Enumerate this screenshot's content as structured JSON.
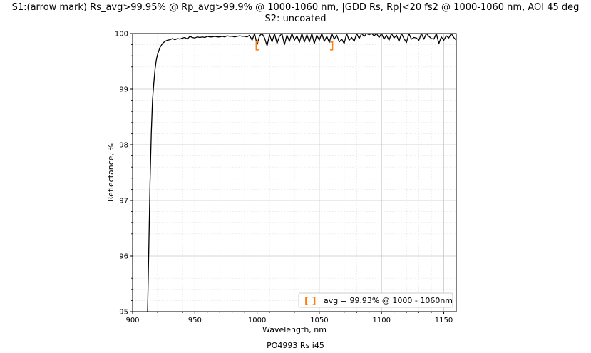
{
  "page": {
    "title_line1": "S1:(arrow mark) Rs_avg>99.95% @ Rp_avg>99.9% @ 1000-1060 nm, |GDD Rs, Rp|<20 fs2 @ 1000-1060 nm, AOI 45 deg",
    "title_line2": "S2: uncoated",
    "caption": "PO4993 Rs i45"
  },
  "chart_data": {
    "type": "line",
    "xlabel": "Wavelength, nm",
    "ylabel": "Reflectance, %",
    "xlim": [
      900,
      1160
    ],
    "ylim": [
      95,
      100
    ],
    "xticks": [
      900,
      950,
      1000,
      1050,
      1100,
      1150
    ],
    "yticks": [
      95,
      96,
      97,
      98,
      99,
      100
    ],
    "grid": "major and minor",
    "line_color": "#000000",
    "accent_color": "#ff7f0e",
    "band_markers": {
      "start_nm": 1000,
      "end_nm": 1060,
      "glyph_open": "[",
      "glyph_close": "]"
    },
    "legend": {
      "position": "bottom-right",
      "symbol": "[ ]",
      "label": "avg = 99.93% @ 1000 - 1060nm"
    },
    "series": [
      {
        "x": [
          912,
          913,
          914,
          915,
          916,
          917,
          918,
          919,
          920,
          922,
          924,
          926,
          928,
          930,
          932,
          934,
          936,
          938,
          940,
          942,
          944,
          946,
          948,
          950,
          952,
          954,
          956,
          958,
          960,
          962,
          964,
          966,
          968,
          970,
          972,
          974,
          976,
          978,
          980,
          982,
          984,
          986,
          988,
          990,
          992,
          994,
          996,
          998,
          1000,
          1002,
          1004,
          1006,
          1008,
          1010,
          1012,
          1014,
          1016,
          1018,
          1020,
          1022,
          1024,
          1026,
          1028,
          1030,
          1032,
          1034,
          1036,
          1038,
          1040,
          1042,
          1044,
          1046,
          1048,
          1050,
          1052,
          1054,
          1056,
          1058,
          1060,
          1062,
          1064,
          1066,
          1068,
          1070,
          1072,
          1074,
          1076,
          1078,
          1080,
          1082,
          1084,
          1086,
          1088,
          1090,
          1092,
          1094,
          1096,
          1098,
          1100,
          1102,
          1104,
          1106,
          1108,
          1110,
          1112,
          1114,
          1116,
          1118,
          1120,
          1122,
          1124,
          1126,
          1128,
          1130,
          1132,
          1134,
          1136,
          1138,
          1140,
          1142,
          1144,
          1146,
          1148,
          1150,
          1152,
          1154,
          1156,
          1158,
          1160
        ],
        "y": [
          95.0,
          96.1,
          97.3,
          98.2,
          98.8,
          99.1,
          99.35,
          99.52,
          99.62,
          99.75,
          99.82,
          99.86,
          99.88,
          99.89,
          99.91,
          99.89,
          99.91,
          99.9,
          99.92,
          99.93,
          99.9,
          99.95,
          99.93,
          99.92,
          99.94,
          99.93,
          99.94,
          99.93,
          99.95,
          99.94,
          99.94,
          99.95,
          99.94,
          99.94,
          99.95,
          99.94,
          99.96,
          99.95,
          99.95,
          99.94,
          99.95,
          99.96,
          99.95,
          99.95,
          99.94,
          99.97,
          99.88,
          100.0,
          99.8,
          99.96,
          100.0,
          99.92,
          99.78,
          99.98,
          99.85,
          100.0,
          99.82,
          99.95,
          100.0,
          99.8,
          99.97,
          99.86,
          100.0,
          99.88,
          99.96,
          99.84,
          100.0,
          99.85,
          99.98,
          99.85,
          100.0,
          99.82,
          99.97,
          99.88,
          100.0,
          99.86,
          99.95,
          99.84,
          100.0,
          99.9,
          99.97,
          99.85,
          99.9,
          99.82,
          100.0,
          99.88,
          99.93,
          99.86,
          100.0,
          99.91,
          100.0,
          99.95,
          100.0,
          99.98,
          100.0,
          99.96,
          100.0,
          99.93,
          100.0,
          99.9,
          99.97,
          99.88,
          100.0,
          99.92,
          99.97,
          99.86,
          100.0,
          99.91,
          99.84,
          100.0,
          99.9,
          99.93,
          99.92,
          99.88,
          100.0,
          99.9,
          100.0,
          99.95,
          99.91,
          99.9,
          100.0,
          99.82,
          99.94,
          99.88,
          99.96,
          99.92,
          100.0,
          99.93,
          99.88
        ]
      }
    ]
  }
}
